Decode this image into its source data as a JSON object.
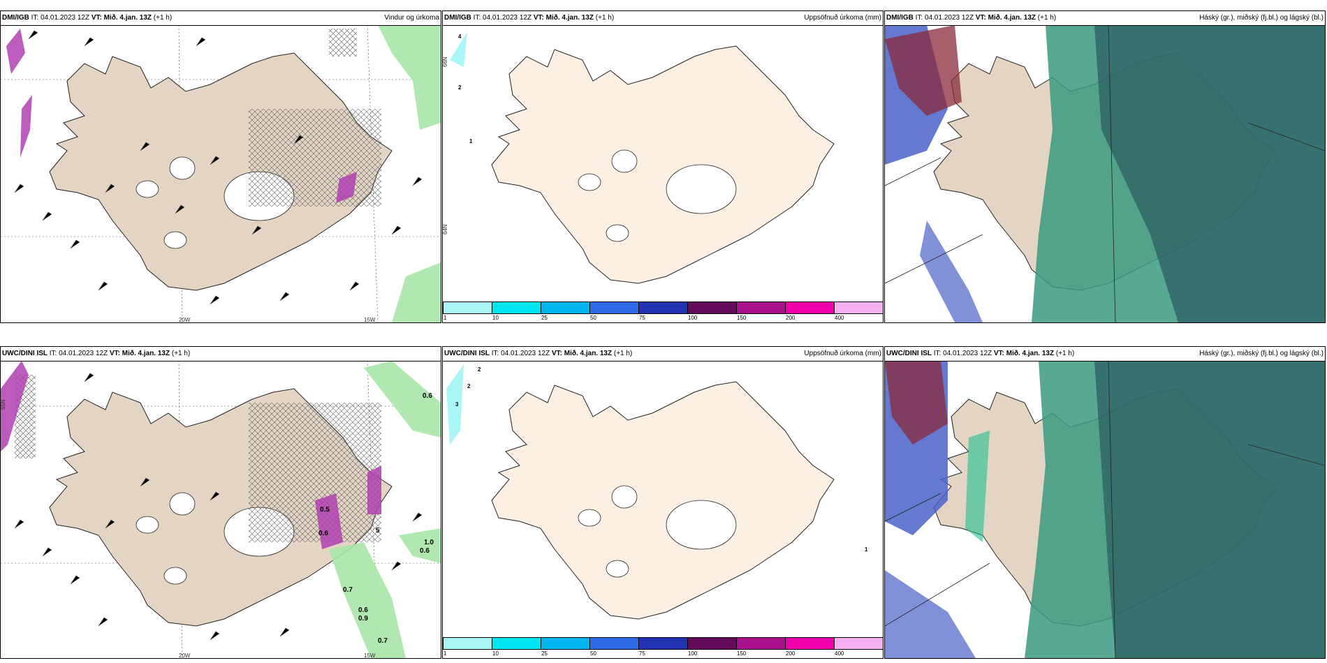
{
  "panels": [
    {
      "id": "p1",
      "source": "DMI/IGB",
      "it_label": "IT:",
      "it_value": "04.01.2023 12Z",
      "vt_label": "VT:",
      "vt_value": "Mið. 4.jan. 13Z",
      "lead": "(+1 h)",
      "product": "Vindur og úrkoma"
    },
    {
      "id": "p2",
      "source": "DMI/IGB",
      "it_label": "IT:",
      "it_value": "04.01.2023 12Z",
      "vt_label": "VT:",
      "vt_value": "Mið. 4.jan. 13Z",
      "lead": "(+1 h)",
      "product": "Uppsöfnuð úrkoma (mm)"
    },
    {
      "id": "p3",
      "source": "DMI/IGB",
      "it_label": "IT:",
      "it_value": "04.01.2023 12Z",
      "vt_label": "VT:",
      "vt_value": "Mið. 4.jan. 13Z",
      "lead": "(+1 h)",
      "product": "Háský (gr.), miðský (fj.bl.) og lágský (bl.)"
    },
    {
      "id": "p4",
      "source": "UWC/DINI ISL",
      "it_label": "IT:",
      "it_value": "04.01.2023 12Z",
      "vt_label": "VT:",
      "vt_value": "Mið. 4.jan. 13Z",
      "lead": "(+1 h)",
      "product": ""
    },
    {
      "id": "p5",
      "source": "UWC/DINI ISL",
      "it_label": "IT:",
      "it_value": "04.01.2023 12Z",
      "vt_label": "VT:",
      "vt_value": "Mið. 4.jan. 13Z",
      "lead": "(+1 h)",
      "product": "Uppsöfnuð úrkoma (mm)"
    },
    {
      "id": "p6",
      "source": "UWC/DINI ISL",
      "it_label": "IT:",
      "it_value": "04.01.2023 12Z",
      "vt_label": "VT:",
      "vt_value": "Mið. 4.jan. 13Z",
      "lead": "(+1 h)",
      "product": "Háský (gr.), miðský (fj.bl.) og lágský (bl.)"
    }
  ],
  "axes": {
    "lon_20": "20W",
    "lon_15": "15W",
    "lat_66": "66N",
    "lat_64": "64N",
    "lat_65": "65N"
  },
  "colorbar": {
    "ticks": [
      "1",
      "10",
      "25",
      "50",
      "75",
      "100",
      "150",
      "200",
      "400"
    ],
    "colors": [
      "#aaf6f6",
      "#00e6f0",
      "#00b4ee",
      "#2f6ae6",
      "#2232b0",
      "#640a5a",
      "#a8108c",
      "#f000a8",
      "#f4b0f0"
    ]
  },
  "precip_labels_top": [
    "4",
    "2",
    "1"
  ],
  "precip_labels_bottom": [
    "2",
    "2",
    "3",
    "1"
  ],
  "wind_labels_bottom": [
    "0.6",
    "0.5",
    "0.6",
    "1.0",
    "0.6",
    "0.7",
    "0.6",
    "0.9",
    "0.7",
    "5"
  ],
  "colors": {
    "land": "#e4d4c4",
    "land_light": "#fdf0e2",
    "precip_green": "#a8e6a8",
    "precip_purple": "#b040b0",
    "cloud_high": "#3a9a80",
    "cloud_mid": "#4a62c8",
    "cloud_low": "#2a5a60"
  }
}
